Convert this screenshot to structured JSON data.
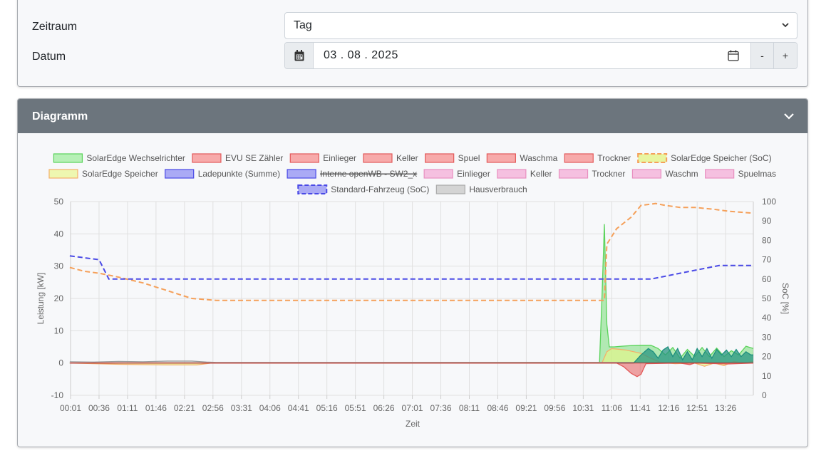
{
  "settings": {
    "zeitraum_label": "Zeitraum",
    "zeitraum_value": "Tag",
    "datum_label": "Datum",
    "datum_value": "03 . 08 . 2025",
    "minus_label": "-",
    "plus_label": "+"
  },
  "diagram": {
    "header_title": "Diagramm"
  },
  "colors": {
    "header_bg": "#6c757d",
    "solar": "#5ad35a",
    "evu": "#e35a5a",
    "storage_soc": "#f5a05a",
    "vehicle_soc": "#4a4ae6",
    "house": "#9a9a9a",
    "teal": "#2a9a8a"
  },
  "icons": {
    "calendar_addon": "calendar-icon",
    "calendar_picker": "calendar-outline-icon",
    "select_caret": "chevron-down-icon",
    "collapse": "chevron-down-icon"
  },
  "chart_data": {
    "type": "line",
    "xlabel": "Zeit",
    "ylabel": "Leistung [kW]",
    "y2label": "SoC [%]",
    "ylim": [
      -10,
      50
    ],
    "y2lim": [
      0,
      100
    ],
    "yticks": [
      50,
      40,
      30,
      20,
      10,
      0,
      -10
    ],
    "y2ticks": [
      100,
      90,
      80,
      70,
      60,
      50,
      40,
      30,
      20,
      10,
      0
    ],
    "xticks": [
      "00:01",
      "00:36",
      "01:11",
      "01:46",
      "02:21",
      "02:56",
      "03:31",
      "04:06",
      "04:41",
      "05:16",
      "05:51",
      "06:26",
      "07:01",
      "07:36",
      "08:11",
      "08:46",
      "09:21",
      "09:56",
      "10:31",
      "11:06",
      "11:41",
      "12:16",
      "12:51",
      "13:26"
    ],
    "x_hours_range": [
      0.0167,
      14.0
    ],
    "grid": true,
    "legend": [
      {
        "name": "SolarEdge Wechselrichter",
        "fill": "#b6f0b6",
        "stroke": "#5ad35a",
        "dashed": false,
        "hidden": false
      },
      {
        "name": "EVU SE Zähler",
        "fill": "#f7aaaa",
        "stroke": "#e35a5a",
        "dashed": false,
        "hidden": false
      },
      {
        "name": "Einlieger",
        "fill": "#f7aaaa",
        "stroke": "#e35a5a",
        "dashed": false,
        "hidden": false
      },
      {
        "name": "Keller",
        "fill": "#f7aaaa",
        "stroke": "#e35a5a",
        "dashed": false,
        "hidden": false
      },
      {
        "name": "Spuel",
        "fill": "#f7aaaa",
        "stroke": "#e35a5a",
        "dashed": false,
        "hidden": false
      },
      {
        "name": "Waschma",
        "fill": "#f7aaaa",
        "stroke": "#e35a5a",
        "dashed": false,
        "hidden": false
      },
      {
        "name": "Trockner",
        "fill": "#f7aaaa",
        "stroke": "#e35a5a",
        "dashed": false,
        "hidden": false
      },
      {
        "name": "SolarEdge Speicher (SoC)",
        "fill": "#e8f5a0",
        "stroke": "#f5a05a",
        "dashed": true,
        "hidden": false
      },
      {
        "name": "SolarEdge Speicher",
        "fill": "#eef7b0",
        "stroke": "#f5b06a",
        "dashed": false,
        "hidden": false
      },
      {
        "name": "Ladepunkte (Summe)",
        "fill": "#aaaaf5",
        "stroke": "#4a4ae6",
        "dashed": false,
        "hidden": false
      },
      {
        "name": "Interne openWB - SW2_x",
        "fill": "#aaaaf5",
        "stroke": "#4a4ae6",
        "dashed": false,
        "hidden": true
      },
      {
        "name": "Einlieger",
        "fill": "#f5c0e0",
        "stroke": "#e890c0",
        "dashed": false,
        "hidden": false
      },
      {
        "name": "Keller",
        "fill": "#f5c0e0",
        "stroke": "#e890c0",
        "dashed": false,
        "hidden": false
      },
      {
        "name": "Trockner",
        "fill": "#f5c0e0",
        "stroke": "#e890c0",
        "dashed": false,
        "hidden": false
      },
      {
        "name": "Waschm",
        "fill": "#f5c0e0",
        "stroke": "#e890c0",
        "dashed": false,
        "hidden": false
      },
      {
        "name": "Spuelmas",
        "fill": "#f5c0e0",
        "stroke": "#e890c0",
        "dashed": false,
        "hidden": false
      },
      {
        "name": "Standard-Fahrzeug (SoC)",
        "fill": "#aaaaf5",
        "stroke": "#4a4ae6",
        "dashed": true,
        "hidden": false
      },
      {
        "name": "Hausverbrauch",
        "fill": "#d4d4d4",
        "stroke": "#aaaaaa",
        "dashed": false,
        "hidden": false
      }
    ],
    "series": [
      {
        "name": "SolarEdge Wechselrichter",
        "axis": "left",
        "kind": "area",
        "color": "#5ad35a",
        "fill": "rgba(120,220,120,0.55)",
        "x": [
          0,
          10.85,
          10.9,
          10.95,
          11.0,
          11.05,
          11.15,
          11.3,
          11.5,
          11.7,
          11.9,
          12.05,
          12.2,
          12.35,
          12.5,
          12.65,
          12.8,
          12.95,
          13.1,
          13.25,
          13.4,
          13.55,
          13.7,
          13.85,
          14.0
        ],
        "y": [
          0,
          0.2,
          20,
          43,
          12,
          5,
          5,
          5.2,
          5.4,
          5.5,
          5.5,
          4.5,
          2.5,
          4.8,
          1.5,
          4.2,
          2.0,
          4.8,
          2.0,
          4.6,
          2.0,
          3.8,
          2.5,
          5.2,
          4.5
        ]
      },
      {
        "name": "SolarEdge Speicher",
        "axis": "left",
        "kind": "area",
        "color": "#f5b06a",
        "fill": "rgba(225,245,140,0.7)",
        "x": [
          0,
          1.0,
          2.0,
          2.6,
          2.9,
          10.9,
          11.0,
          11.1,
          11.4,
          11.7,
          11.9,
          12.1,
          12.4,
          12.8,
          13.0,
          13.2,
          13.4,
          13.6,
          13.8,
          14.0
        ],
        "y": [
          0,
          -0.4,
          -0.6,
          -0.6,
          0,
          0,
          3.5,
          4.5,
          4.0,
          3.0,
          1.5,
          0.2,
          -0.2,
          0,
          -1.0,
          0,
          -0.8,
          0.5,
          0,
          0.5
        ]
      },
      {
        "name": "Hausverbrauch",
        "axis": "left",
        "kind": "area",
        "color": "#9a9a9a",
        "fill": "rgba(170,170,170,0.45)",
        "x": [
          0,
          0.5,
          1.0,
          1.5,
          2.0,
          2.5,
          2.8,
          3.0,
          14.0
        ],
        "y": [
          0.4,
          0.3,
          0.5,
          0.4,
          0.6,
          0.6,
          0.3,
          0.2,
          0.2
        ]
      },
      {
        "name": "Teal",
        "axis": "left",
        "kind": "area",
        "color": "#1e8f7f",
        "fill": "rgba(40,150,130,0.75)",
        "x": [
          0,
          11.55,
          11.7,
          11.85,
          11.95,
          12.05,
          12.15,
          12.25,
          12.35,
          12.45,
          12.55,
          12.65,
          12.75,
          12.85,
          12.95,
          13.05,
          13.15,
          13.25,
          13.35,
          13.45,
          13.55,
          13.65,
          13.75,
          13.85,
          13.95,
          14.0
        ],
        "y": [
          0,
          0,
          2.5,
          4.5,
          3.5,
          1.5,
          4.0,
          5.0,
          2.0,
          4.5,
          1.0,
          3.5,
          1.0,
          4.5,
          2.0,
          4.5,
          1.5,
          4.2,
          2.5,
          4.0,
          2.0,
          4.2,
          2.0,
          3.5,
          2.5,
          2.5
        ]
      },
      {
        "name": "EVU SE Zähler",
        "axis": "left",
        "kind": "area",
        "color": "#e35a5a",
        "fill": "rgba(230,90,90,0.55)",
        "x": [
          0,
          11.2,
          11.35,
          11.5,
          11.62,
          11.7,
          11.8,
          12.5,
          12.7,
          12.8,
          13.5,
          14.0
        ],
        "y": [
          0,
          0,
          -1.2,
          -3.2,
          -4.2,
          -3.5,
          -0.2,
          0,
          -0.5,
          0,
          -0.3,
          0
        ]
      },
      {
        "name": "SolarEdge Speicher (SoC)",
        "axis": "right",
        "kind": "line",
        "color": "#f5a05a",
        "dashed": true,
        "x": [
          0,
          0.3,
          0.6,
          1.0,
          1.5,
          2.0,
          2.5,
          3.0,
          10.85,
          10.95,
          11.0,
          11.2,
          11.5,
          11.7,
          12.0,
          12.2,
          12.5,
          12.8,
          13.2,
          13.5,
          14.0
        ],
        "y": [
          66,
          64,
          63,
          61,
          58,
          54,
          50,
          49,
          49,
          49,
          78,
          86,
          92,
          98,
          99,
          98,
          97,
          97,
          96,
          95,
          94
        ]
      },
      {
        "name": "Standard-Fahrzeug (SoC)",
        "axis": "right",
        "kind": "line",
        "color": "#4a4ae6",
        "dashed": true,
        "x": [
          0,
          0.3,
          0.6,
          0.8,
          1.0,
          11.9,
          12.1,
          12.3,
          12.5,
          12.7,
          12.9,
          13.1,
          13.3,
          13.5,
          13.7,
          14.0
        ],
        "y": [
          72,
          71,
          70,
          60,
          60,
          60,
          61,
          62,
          63,
          64,
          65,
          66,
          67,
          67,
          67,
          67
        ]
      }
    ]
  }
}
